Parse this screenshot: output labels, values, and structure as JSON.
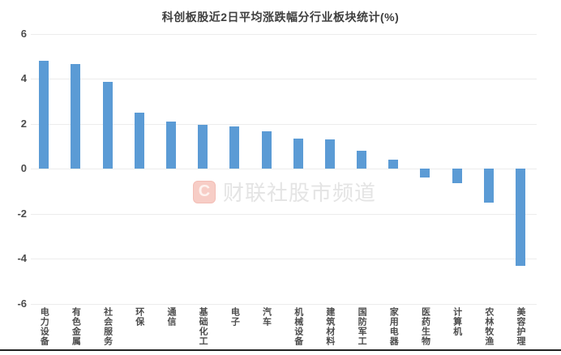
{
  "chart_data": {
    "type": "bar",
    "title": "科创板股近2日平均涨跌幅分行业板块统计(%)",
    "categories": [
      "电力设备",
      "有色金属",
      "社会服务",
      "环保",
      "通信",
      "基础化工",
      "电子",
      "汽车",
      "机械设备",
      "建筑材料",
      "国防军工",
      "家用电器",
      "医药生物",
      "计算机",
      "农林牧渔",
      "美容护理"
    ],
    "values": [
      4.8,
      4.65,
      3.85,
      2.5,
      2.1,
      1.95,
      1.9,
      1.65,
      1.35,
      1.3,
      0.8,
      0.4,
      -0.4,
      -0.65,
      -1.5,
      -4.3
    ],
    "xlabel": "",
    "ylabel": "",
    "ylim": [
      -6,
      6
    ],
    "yticks": [
      6,
      4,
      2,
      0,
      -2,
      -4,
      -6
    ],
    "grid": "horizontal",
    "legend": "none",
    "bar_color": "#5b9bd5",
    "gridline_color": "#ececec"
  },
  "watermark": {
    "logo_letter": "C",
    "text": "财联社股市频道",
    "logo_color": "#f7cdc6"
  }
}
